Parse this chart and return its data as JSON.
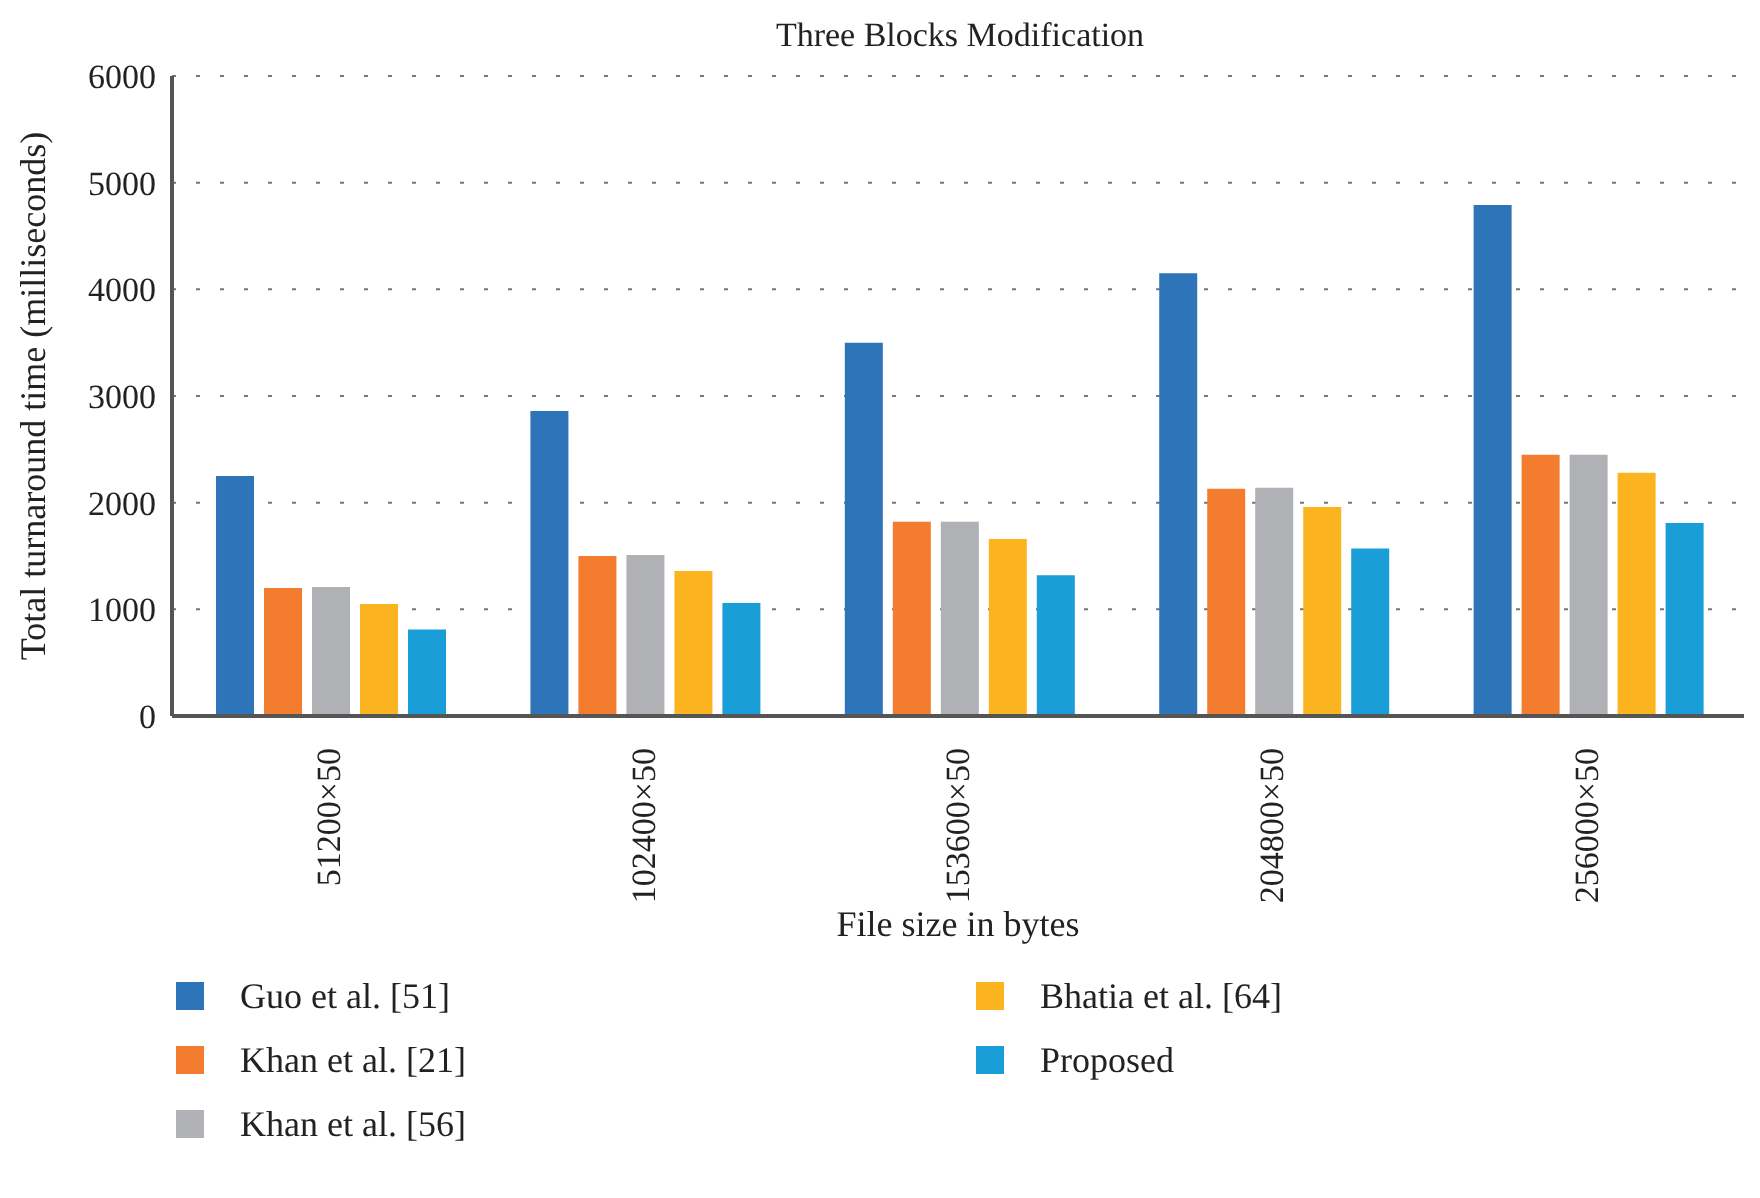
{
  "chart_data": {
    "type": "bar",
    "title": "Three Blocks Modification",
    "xlabel": "File size in bytes",
    "ylabel": "Total turnaround time (milliseconds)",
    "categories": [
      "51200×50",
      "102400×50",
      "153600×50",
      "204800×50",
      "256000×50"
    ],
    "series": [
      {
        "name": "Guo et al. [51]",
        "color": "#2e74b9",
        "values": [
          2250,
          2860,
          3500,
          4150,
          4790
        ]
      },
      {
        "name": "Khan et al. [21]",
        "color": "#f37c2f",
        "values": [
          1200,
          1500,
          1820,
          2130,
          2450
        ]
      },
      {
        "name": "Khan et al. [56]",
        "color": "#b0b1b4",
        "values": [
          1210,
          1510,
          1820,
          2140,
          2450
        ]
      },
      {
        "name": "Bhatia et al. [64]",
        "color": "#fbb31f",
        "values": [
          1050,
          1360,
          1660,
          1960,
          2280
        ]
      },
      {
        "name": "Proposed",
        "color": "#1a9ed8",
        "values": [
          810,
          1060,
          1320,
          1570,
          1810
        ]
      }
    ],
    "ylim": [
      0,
      6000
    ],
    "yticks": [
      0,
      1000,
      2000,
      3000,
      4000,
      5000,
      6000
    ],
    "grid": "y",
    "legend": "bottom"
  }
}
